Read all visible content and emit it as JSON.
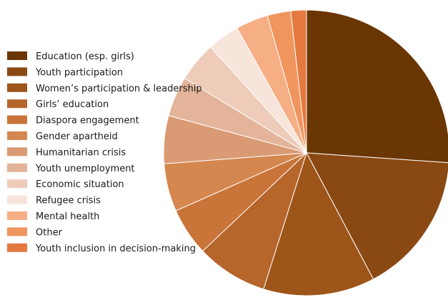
{
  "chart_data": {
    "type": "pie",
    "start_angle_deg": -90,
    "direction": "clockwise",
    "title": "",
    "legend_position": "left",
    "slices": [
      {
        "label": "Education (esp. girls)",
        "value": 23.6,
        "color": "#6a3604"
      },
      {
        "label": "Youth participation",
        "value": 14.6,
        "color": "#8a4813"
      },
      {
        "label": "Women’s participation & leadership",
        "value": 11.4,
        "color": "#9e5519"
      },
      {
        "label": "Girls’ education",
        "value": 7.3,
        "color": "#b6652b"
      },
      {
        "label": "Diaspora engagement",
        "value": 4.9,
        "color": "#c97438"
      },
      {
        "label": "Gender apartheid",
        "value": 4.9,
        "color": "#d4874f"
      },
      {
        "label": "Humanitarian crisis",
        "value": 4.9,
        "color": "#d99a74"
      },
      {
        "label": "Youth unemployment",
        "value": 4.1,
        "color": "#e3b49a"
      },
      {
        "label": "Economic situation",
        "value": 4.1,
        "color": "#eeccb9"
      },
      {
        "label": "Refugee crisis",
        "value": 3.3,
        "color": "#f7e4da"
      },
      {
        "label": "Mental health",
        "value": 3.3,
        "color": "#f6ae84"
      },
      {
        "label": "Other",
        "value": 2.4,
        "color": "#f0955e"
      },
      {
        "label": "Youth inclusion in decision-making",
        "value": 1.6,
        "color": "#e47a3f"
      }
    ]
  }
}
